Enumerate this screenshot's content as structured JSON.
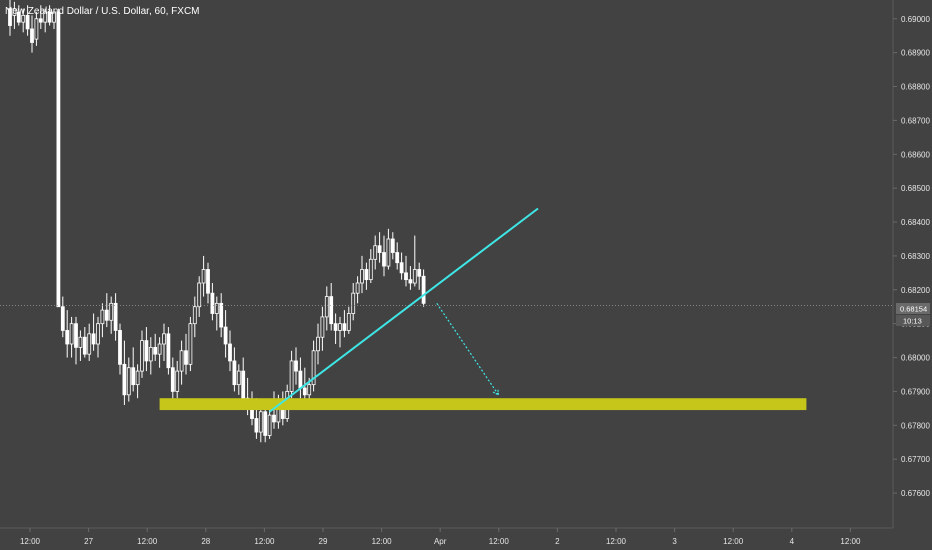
{
  "header": {
    "symbol_title": "New Zealand Dollar / U.S. Dollar, 60, FXCM"
  },
  "colors": {
    "background": "#424242",
    "candle_up": "#ffffff",
    "candle_down": "#ffffff",
    "support_zone": "#c6c61a",
    "trendline": "#3fe6e6",
    "projection": "#3fe6e6",
    "price_line": "#9a9a9a"
  },
  "price_tags": {
    "current_price": "0.68154",
    "countdown": "10:13"
  },
  "chart_data": {
    "type": "candlestick",
    "title": "New Zealand Dollar / U.S. Dollar, 60, FXCM",
    "ylim": [
      0.6755,
      0.6902
    ],
    "y_ticks": [
      "0.69000",
      "0.68900",
      "0.68800",
      "0.68700",
      "0.68600",
      "0.68500",
      "0.68400",
      "0.68300",
      "0.68200",
      "0.68100",
      "0.68000",
      "0.67900",
      "0.67800",
      "0.67700",
      "0.67600"
    ],
    "x_ticks": [
      "12:00",
      "27",
      "12:00",
      "28",
      "12:00",
      "29",
      "12:00",
      "Apr",
      "12:00",
      "2",
      "12:00",
      "3",
      "12:00",
      "4",
      "12:00"
    ],
    "current_price": 0.68154,
    "countdown": "10:13",
    "grid": false,
    "legend": "none",
    "candles": [
      [
        0,
        0.6903,
        0.6906,
        0.6895,
        0.6898
      ],
      [
        1,
        0.6901,
        0.6905,
        0.6897,
        0.6903
      ],
      [
        2,
        0.6902,
        0.6904,
        0.6898,
        0.6899
      ],
      [
        3,
        0.6899,
        0.6903,
        0.6896,
        0.6901
      ],
      [
        4,
        0.6901,
        0.6904,
        0.6895,
        0.6897
      ],
      [
        5,
        0.6897,
        0.6901,
        0.689,
        0.6893
      ],
      [
        6,
        0.6894,
        0.6902,
        0.6892,
        0.69
      ],
      [
        7,
        0.69,
        0.6904,
        0.6897,
        0.6899
      ],
      [
        8,
        0.6899,
        0.6903,
        0.6896,
        0.6902
      ],
      [
        9,
        0.6902,
        0.6904,
        0.6898,
        0.6899
      ],
      [
        10,
        0.6899,
        0.6903,
        0.6897,
        0.6902
      ],
      [
        11,
        0.6902,
        0.6903,
        0.6815,
        0.6815
      ],
      [
        12,
        0.6815,
        0.6818,
        0.6806,
        0.6808
      ],
      [
        13,
        0.6808,
        0.6814,
        0.68,
        0.6804
      ],
      [
        14,
        0.6804,
        0.6812,
        0.68,
        0.681
      ],
      [
        15,
        0.681,
        0.6812,
        0.6798,
        0.6803
      ],
      [
        16,
        0.6803,
        0.6808,
        0.6799,
        0.6806
      ],
      [
        17,
        0.6806,
        0.6809,
        0.68,
        0.6801
      ],
      [
        18,
        0.6801,
        0.681,
        0.6799,
        0.6807
      ],
      [
        19,
        0.6807,
        0.6813,
        0.6802,
        0.6804
      ],
      [
        20,
        0.6804,
        0.6812,
        0.68,
        0.681
      ],
      [
        21,
        0.681,
        0.6816,
        0.6806,
        0.6814
      ],
      [
        22,
        0.6814,
        0.6819,
        0.6809,
        0.6811
      ],
      [
        23,
        0.6811,
        0.6818,
        0.6807,
        0.6816
      ],
      [
        24,
        0.6816,
        0.6819,
        0.6805,
        0.6808
      ],
      [
        25,
        0.6808,
        0.681,
        0.6795,
        0.6798
      ],
      [
        26,
        0.6798,
        0.6805,
        0.6786,
        0.6789
      ],
      [
        27,
        0.6789,
        0.68,
        0.6787,
        0.6797
      ],
      [
        28,
        0.6797,
        0.6803,
        0.679,
        0.6792
      ],
      [
        29,
        0.6792,
        0.6798,
        0.6788,
        0.6796
      ],
      [
        30,
        0.6796,
        0.6808,
        0.6794,
        0.6805
      ],
      [
        31,
        0.6805,
        0.6809,
        0.6796,
        0.6799
      ],
      [
        32,
        0.6799,
        0.6806,
        0.6795,
        0.6803
      ],
      [
        33,
        0.6803,
        0.6807,
        0.6799,
        0.6801
      ],
      [
        34,
        0.6801,
        0.6806,
        0.6797,
        0.6804
      ],
      [
        35,
        0.6804,
        0.681,
        0.6799,
        0.6807
      ],
      [
        36,
        0.6807,
        0.6809,
        0.6795,
        0.6797
      ],
      [
        37,
        0.6797,
        0.68,
        0.6787,
        0.679
      ],
      [
        38,
        0.679,
        0.6799,
        0.6788,
        0.6796
      ],
      [
        39,
        0.6796,
        0.6805,
        0.6792,
        0.6802
      ],
      [
        40,
        0.6802,
        0.6807,
        0.6795,
        0.6798
      ],
      [
        41,
        0.6798,
        0.6812,
        0.6796,
        0.681
      ],
      [
        42,
        0.681,
        0.6818,
        0.6806,
        0.6815
      ],
      [
        43,
        0.6815,
        0.6824,
        0.6812,
        0.6822
      ],
      [
        44,
        0.6822,
        0.683,
        0.6818,
        0.6826
      ],
      [
        45,
        0.6826,
        0.6828,
        0.6816,
        0.6819
      ],
      [
        46,
        0.6819,
        0.6822,
        0.6811,
        0.6813
      ],
      [
        47,
        0.6813,
        0.6818,
        0.6808,
        0.6816
      ],
      [
        48,
        0.6816,
        0.6819,
        0.6806,
        0.6809
      ],
      [
        49,
        0.6809,
        0.6814,
        0.68,
        0.6804
      ],
      [
        50,
        0.6804,
        0.6808,
        0.6796,
        0.6799
      ],
      [
        51,
        0.6799,
        0.6803,
        0.679,
        0.6792
      ],
      [
        52,
        0.6792,
        0.6798,
        0.6789,
        0.6796
      ],
      [
        53,
        0.6796,
        0.68,
        0.6786,
        0.6788
      ],
      [
        54,
        0.6788,
        0.6794,
        0.6783,
        0.6786
      ],
      [
        55,
        0.6786,
        0.679,
        0.678,
        0.6782
      ],
      [
        56,
        0.6782,
        0.6788,
        0.6776,
        0.6778
      ],
      [
        57,
        0.6778,
        0.6786,
        0.6775,
        0.6784
      ],
      [
        58,
        0.6784,
        0.6786,
        0.6775,
        0.6777
      ],
      [
        59,
        0.6777,
        0.6785,
        0.6776,
        0.6783
      ],
      [
        60,
        0.6783,
        0.679,
        0.6779,
        0.6781
      ],
      [
        61,
        0.6781,
        0.6789,
        0.6779,
        0.6787
      ],
      [
        62,
        0.6787,
        0.679,
        0.678,
        0.6782
      ],
      [
        63,
        0.6782,
        0.6792,
        0.6781,
        0.679
      ],
      [
        64,
        0.679,
        0.6802,
        0.6788,
        0.6799
      ],
      [
        65,
        0.6799,
        0.6803,
        0.6792,
        0.6796
      ],
      [
        66,
        0.6796,
        0.68,
        0.6788,
        0.6791
      ],
      [
        67,
        0.6791,
        0.6797,
        0.6785,
        0.6789
      ],
      [
        68,
        0.6789,
        0.6794,
        0.6785,
        0.6792
      ],
      [
        69,
        0.6792,
        0.6805,
        0.679,
        0.6802
      ],
      [
        70,
        0.6802,
        0.681,
        0.6798,
        0.6806
      ],
      [
        71,
        0.6806,
        0.6815,
        0.6802,
        0.6812
      ],
      [
        72,
        0.6812,
        0.6821,
        0.6808,
        0.6818
      ],
      [
        73,
        0.6818,
        0.6822,
        0.6808,
        0.681
      ],
      [
        74,
        0.681,
        0.6813,
        0.6804,
        0.6808
      ],
      [
        75,
        0.6808,
        0.6812,
        0.6803,
        0.681
      ],
      [
        76,
        0.681,
        0.6814,
        0.6806,
        0.6808
      ],
      [
        77,
        0.6808,
        0.6815,
        0.6807,
        0.6813
      ],
      [
        78,
        0.6813,
        0.6822,
        0.6811,
        0.6819
      ],
      [
        79,
        0.6819,
        0.6824,
        0.6816,
        0.6822
      ],
      [
        80,
        0.6822,
        0.683,
        0.6819,
        0.6826
      ],
      [
        81,
        0.6826,
        0.6828,
        0.682,
        0.6823
      ],
      [
        82,
        0.6823,
        0.6832,
        0.6822,
        0.6829
      ],
      [
        83,
        0.6829,
        0.6836,
        0.6826,
        0.6833
      ],
      [
        84,
        0.6833,
        0.6837,
        0.6828,
        0.6831
      ],
      [
        85,
        0.6831,
        0.6836,
        0.6824,
        0.6827
      ],
      [
        86,
        0.6827,
        0.6838,
        0.6826,
        0.6835
      ],
      [
        87,
        0.6835,
        0.6837,
        0.6829,
        0.6831
      ],
      [
        88,
        0.6831,
        0.6834,
        0.6826,
        0.6828
      ],
      [
        89,
        0.6828,
        0.6831,
        0.6823,
        0.6825
      ],
      [
        90,
        0.6825,
        0.683,
        0.6821,
        0.6823
      ],
      [
        91,
        0.6823,
        0.6827,
        0.682,
        0.6822
      ],
      [
        92,
        0.6822,
        0.6836,
        0.6821,
        0.6826
      ],
      [
        93,
        0.6826,
        0.6828,
        0.682,
        0.6824
      ],
      [
        94,
        0.6824,
        0.6826,
        0.6815,
        0.6816
      ]
    ],
    "support_zone": {
      "price_low": 0.67845,
      "price_high": 0.6788,
      "bar_start": 34,
      "bar_end": 181
    },
    "trendline": {
      "from": [
        59,
        0.6784
      ],
      "to": [
        120,
        0.6844
      ]
    },
    "projection": {
      "from": [
        97,
        0.6816
      ],
      "to": [
        111,
        0.6789
      ]
    }
  }
}
